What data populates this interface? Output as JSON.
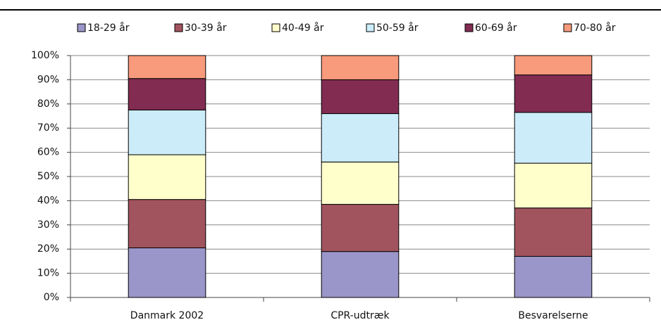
{
  "chart_data": {
    "type": "stacked_bar",
    "categories": [
      "Danmark 2002",
      "CPR-udtræk",
      "Besvarelserne"
    ],
    "series": [
      {
        "name": "18-29 år",
        "color": "#9b96c9",
        "values": [
          20.5,
          19,
          17
        ]
      },
      {
        "name": "30-39 år",
        "color": "#a2545e",
        "values": [
          20,
          19.5,
          20
        ]
      },
      {
        "name": "40-49 år",
        "color": "#ffffcc",
        "values": [
          18.5,
          17.5,
          18.5
        ]
      },
      {
        "name": "50-59 år",
        "color": "#ccecf9",
        "values": [
          18.5,
          20,
          21
        ]
      },
      {
        "name": "60-69 år",
        "color": "#822c52",
        "values": [
          13,
          14,
          15.5
        ]
      },
      {
        "name": "70-80 år",
        "color": "#f89a7c",
        "values": [
          9.5,
          10,
          8
        ]
      }
    ],
    "ylim": [
      0,
      100
    ],
    "yticks": [
      {
        "value": 0,
        "label": "0%"
      },
      {
        "value": 10,
        "label": "10%"
      },
      {
        "value": 20,
        "label": "20%"
      },
      {
        "value": 30,
        "label": "30%"
      },
      {
        "value": 40,
        "label": "40%"
      },
      {
        "value": 50,
        "label": "50%"
      },
      {
        "value": 60,
        "label": "60%"
      },
      {
        "value": 70,
        "label": "70%"
      },
      {
        "value": 80,
        "label": "80%"
      },
      {
        "value": 90,
        "label": "90%"
      },
      {
        "value": 100,
        "label": "100%"
      }
    ],
    "grid": true,
    "legend": "top"
  }
}
